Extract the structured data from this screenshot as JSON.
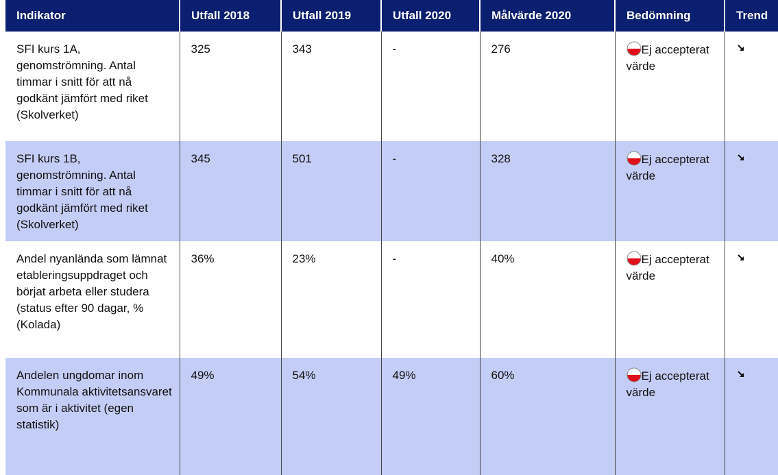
{
  "table": {
    "columns": [
      "Indikator",
      "Utfall 2018",
      "Utfall 2019",
      "Utfall 2020",
      "Målvärde 2020",
      "Bedömning",
      "Trend"
    ],
    "rows": [
      [
        "SFI kurs 1A, genomströmning. Antal timmar i snitt för att nå godkänt jämfört med riket (Skolverket)",
        "325",
        "343",
        "-",
        "276",
        "Ej accepterat värde"
      ],
      [
        "SFI kurs 1B, genomströmning. Antal timmar i snitt för att nå godkänt jämfört med riket (Skolverket)",
        "345",
        "501",
        "-",
        "328",
        "Ej accepterat värde"
      ],
      [
        "Andel nyanlända som lämnat etableringsuppdraget och börjat arbeta eller studera (status efter 90 dagar, % (Kolada)",
        "36%",
        "23%",
        "-",
        "40%",
        "Ej accepterat värde"
      ],
      [
        "Andelen ungdomar inom Kommunala aktivitetsansvaret som är i aktivitet (egen statistik)",
        "49%",
        "54%",
        "49%",
        "60%",
        "Ej accepterat värde"
      ]
    ]
  }
}
